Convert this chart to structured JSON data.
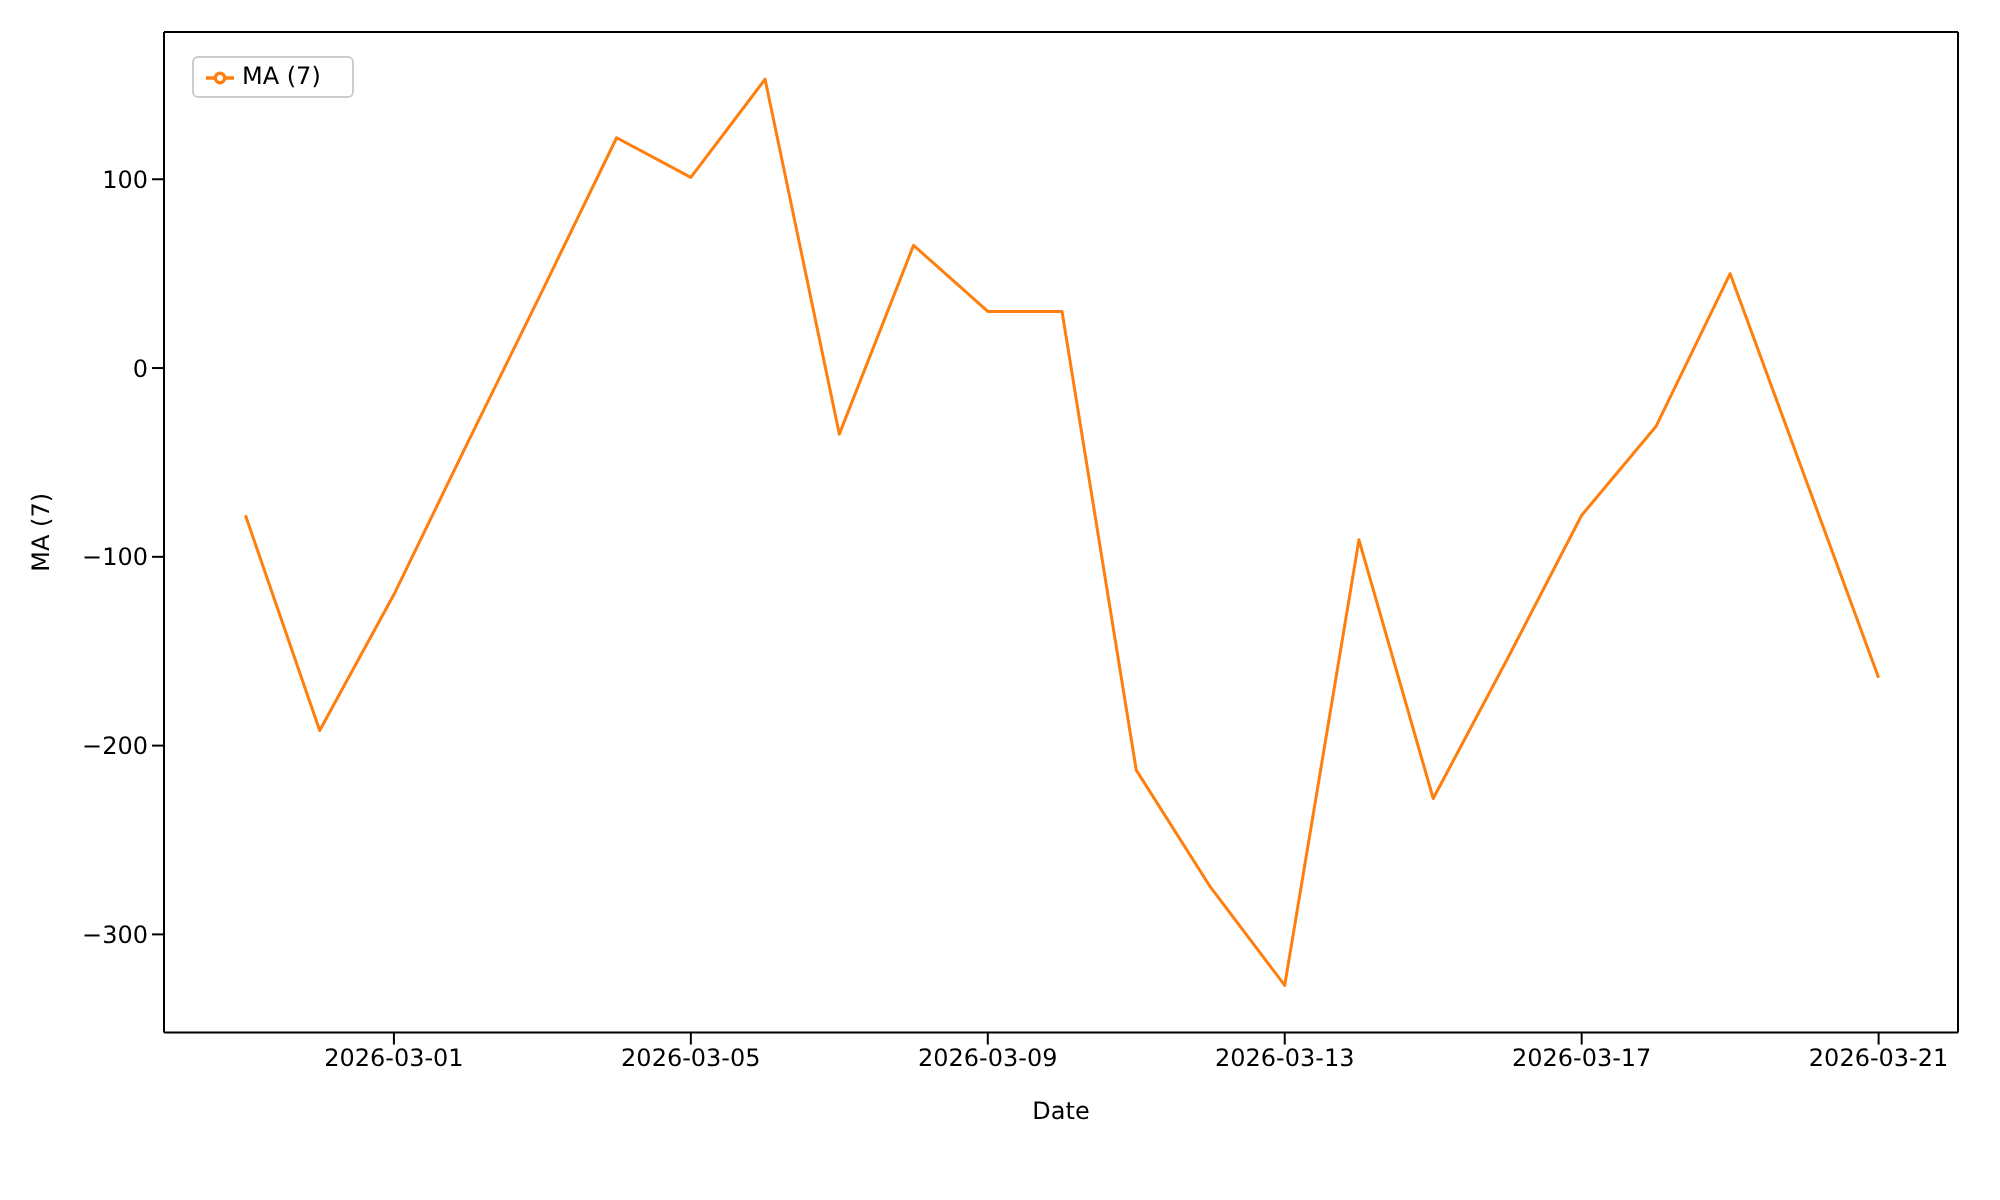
{
  "chart_data": {
    "type": "line",
    "xlabel": "Date",
    "ylabel": "MA (7)",
    "x": [
      "2026-02-27",
      "2026-02-28",
      "2026-03-01",
      "2026-03-02",
      "2026-03-03",
      "2026-03-04",
      "2026-03-05",
      "2026-03-06",
      "2026-03-07",
      "2026-03-08",
      "2026-03-09",
      "2026-03-10",
      "2026-03-11",
      "2026-03-12",
      "2026-03-13",
      "2026-03-14",
      "2026-03-15",
      "2026-03-16",
      "2026-03-17",
      "2026-03-18",
      "2026-03-19",
      "2026-03-20",
      "2026-03-21"
    ],
    "series": [
      {
        "name": "MA (7)",
        "color": "#ff7f0e",
        "values": [
          -78,
          -192,
          -120,
          -39,
          41,
          122,
          101,
          153,
          -35,
          65,
          30,
          30,
          -213,
          -275,
          -327,
          -91,
          -228,
          -154,
          -78,
          -31,
          50,
          -57,
          -164
        ]
      }
    ],
    "xlim": [
      "2026-02-25T21:40",
      "2026-03-22T01:40"
    ],
    "xticks": [
      "2026-03-01",
      "2026-03-05",
      "2026-03-09",
      "2026-03-13",
      "2026-03-17",
      "2026-03-21"
    ],
    "ylim": [
      -352,
      178
    ],
    "yticks": [
      {
        "value": -300,
        "label": "−300"
      },
      {
        "value": -200,
        "label": "−200"
      },
      {
        "value": -100,
        "label": "−100"
      },
      0,
      100
    ],
    "grid": false,
    "legend": "top left",
    "line_style": "solid",
    "marker": "none"
  }
}
